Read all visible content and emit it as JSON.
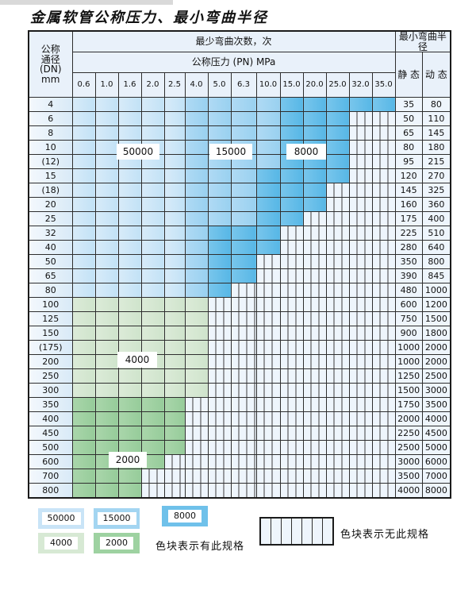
{
  "title": "金属软管公称压力、最小弯曲半径",
  "table": {
    "header": {
      "col_dn": [
        "公称",
        "通径",
        "(DN)",
        "mm"
      ],
      "bend_times": "最少弯曲次数，次",
      "pressure": "公称压力 (PN) MPa",
      "pressures": [
        "0.6",
        "1.0",
        "1.6",
        "2.0",
        "2.5",
        "4.0",
        "5.0",
        "6.3",
        "10.0",
        "15.0",
        "20.0",
        "25.0",
        "32.0",
        "35.0"
      ],
      "radius": "最小弯曲半径",
      "static": "静 态",
      "dynamic": "动 态"
    },
    "cell_legend_note": "cells: b1=50000次, b2=15000次, b3=8000次, g1=4000次, g2=2000次, x=无此规格",
    "rows": [
      {
        "dn": "4",
        "static": "35",
        "dynamic": "80",
        "cells": [
          "b1",
          "b1",
          "b1",
          "b1",
          "b1",
          "b2",
          "b2",
          "b2",
          "b2",
          "b3",
          "b3",
          "b3",
          "b3",
          "b3"
        ]
      },
      {
        "dn": "6",
        "static": "50",
        "dynamic": "110",
        "cells": [
          "b1",
          "b1",
          "b1",
          "b1",
          "b1",
          "b2",
          "b2",
          "b2",
          "b2",
          "b3",
          "b3",
          "b3",
          "x",
          "x"
        ]
      },
      {
        "dn": "8",
        "static": "65",
        "dynamic": "145",
        "cells": [
          "b1",
          "b1",
          "b1",
          "b1",
          "b1",
          "b2",
          "b2",
          "b2",
          "b2",
          "b3",
          "b3",
          "b3",
          "x",
          "x"
        ]
      },
      {
        "dn": "10",
        "static": "80",
        "dynamic": "180",
        "cells": [
          "b1",
          "b1",
          "b1",
          "b1",
          "b1",
          "b2",
          "b2",
          "b2",
          "b2",
          "b3",
          "b3",
          "b3",
          "x",
          "x"
        ]
      },
      {
        "dn": "(12)",
        "static": "95",
        "dynamic": "215",
        "cells": [
          "b1",
          "b1",
          "b1",
          "b1",
          "b1",
          "b2",
          "b2",
          "b2",
          "b2",
          "b3",
          "b3",
          "b3",
          "x",
          "x"
        ]
      },
      {
        "dn": "15",
        "static": "120",
        "dynamic": "270",
        "cells": [
          "b1",
          "b1",
          "b1",
          "b1",
          "b1",
          "b2",
          "b2",
          "b2",
          "b3",
          "b3",
          "b3",
          "b3",
          "x",
          "x"
        ]
      },
      {
        "dn": "(18)",
        "static": "145",
        "dynamic": "325",
        "cells": [
          "b1",
          "b1",
          "b1",
          "b1",
          "b1",
          "b2",
          "b2",
          "b2",
          "b3",
          "b3",
          "b3",
          "x",
          "x",
          "x"
        ]
      },
      {
        "dn": "20",
        "static": "160",
        "dynamic": "360",
        "cells": [
          "b1",
          "b1",
          "b1",
          "b1",
          "b1",
          "b2",
          "b2",
          "b2",
          "b3",
          "b3",
          "b3",
          "x",
          "x",
          "x"
        ]
      },
      {
        "dn": "25",
        "static": "175",
        "dynamic": "400",
        "cells": [
          "b1",
          "b1",
          "b1",
          "b1",
          "b1",
          "b2",
          "b2",
          "b2",
          "b3",
          "b3",
          "x",
          "x",
          "x",
          "x"
        ]
      },
      {
        "dn": "32",
        "static": "225",
        "dynamic": "510",
        "cells": [
          "b1",
          "b1",
          "b1",
          "b1",
          "b1",
          "b2",
          "b3",
          "b3",
          "b3",
          "x",
          "x",
          "x",
          "x",
          "x"
        ]
      },
      {
        "dn": "40",
        "static": "280",
        "dynamic": "640",
        "cells": [
          "b1",
          "b1",
          "b1",
          "b1",
          "b1",
          "b2",
          "b3",
          "b3",
          "b3",
          "x",
          "x",
          "x",
          "x",
          "x"
        ]
      },
      {
        "dn": "50",
        "static": "350",
        "dynamic": "800",
        "cells": [
          "b1",
          "b1",
          "b1",
          "b1",
          "b1",
          "b2",
          "b3",
          "b3",
          "x",
          "x",
          "x",
          "x",
          "x",
          "x"
        ]
      },
      {
        "dn": "65",
        "static": "390",
        "dynamic": "845",
        "cells": [
          "b1",
          "b1",
          "b1",
          "b1",
          "b1",
          "b2",
          "b3",
          "b3",
          "x",
          "x",
          "x",
          "x",
          "x",
          "x"
        ]
      },
      {
        "dn": "80",
        "static": "480",
        "dynamic": "1000",
        "cells": [
          "b1",
          "b1",
          "b1",
          "b1",
          "b1",
          "b2",
          "b3",
          "x",
          "x",
          "x",
          "x",
          "x",
          "x",
          "x"
        ]
      },
      {
        "dn": "100",
        "static": "600",
        "dynamic": "1200",
        "cells": [
          "g1",
          "g1",
          "g1",
          "g1",
          "g1",
          "g1",
          "x",
          "x",
          "x",
          "x",
          "x",
          "x",
          "x",
          "x"
        ]
      },
      {
        "dn": "125",
        "static": "750",
        "dynamic": "1500",
        "cells": [
          "g1",
          "g1",
          "g1",
          "g1",
          "g1",
          "g1",
          "x",
          "x",
          "x",
          "x",
          "x",
          "x",
          "x",
          "x"
        ]
      },
      {
        "dn": "150",
        "static": "900",
        "dynamic": "1800",
        "cells": [
          "g1",
          "g1",
          "g1",
          "g1",
          "g1",
          "g1",
          "x",
          "x",
          "x",
          "x",
          "x",
          "x",
          "x",
          "x"
        ]
      },
      {
        "dn": "(175)",
        "static": "1000",
        "dynamic": "2000",
        "cells": [
          "g1",
          "g1",
          "g1",
          "g1",
          "g1",
          "g1",
          "x",
          "x",
          "x",
          "x",
          "x",
          "x",
          "x",
          "x"
        ]
      },
      {
        "dn": "200",
        "static": "1000",
        "dynamic": "2000",
        "cells": [
          "g1",
          "g1",
          "g1",
          "g1",
          "g1",
          "g1",
          "x",
          "x",
          "x",
          "x",
          "x",
          "x",
          "x",
          "x"
        ]
      },
      {
        "dn": "250",
        "static": "1250",
        "dynamic": "2500",
        "cells": [
          "g1",
          "g1",
          "g1",
          "g1",
          "g1",
          "g1",
          "x",
          "x",
          "x",
          "x",
          "x",
          "x",
          "x",
          "x"
        ]
      },
      {
        "dn": "300",
        "static": "1500",
        "dynamic": "3000",
        "cells": [
          "g1",
          "g1",
          "g1",
          "g1",
          "g1",
          "g1",
          "x",
          "x",
          "x",
          "x",
          "x",
          "x",
          "x",
          "x"
        ]
      },
      {
        "dn": "350",
        "static": "1750",
        "dynamic": "3500",
        "cells": [
          "g2",
          "g2",
          "g2",
          "g2",
          "g2",
          "x",
          "x",
          "x",
          "x",
          "x",
          "x",
          "x",
          "x",
          "x"
        ]
      },
      {
        "dn": "400",
        "static": "2000",
        "dynamic": "4000",
        "cells": [
          "g2",
          "g2",
          "g2",
          "g2",
          "g2",
          "x",
          "x",
          "x",
          "x",
          "x",
          "x",
          "x",
          "x",
          "x"
        ]
      },
      {
        "dn": "450",
        "static": "2250",
        "dynamic": "4500",
        "cells": [
          "g2",
          "g2",
          "g2",
          "g2",
          "g2",
          "x",
          "x",
          "x",
          "x",
          "x",
          "x",
          "x",
          "x",
          "x"
        ]
      },
      {
        "dn": "500",
        "static": "2500",
        "dynamic": "5000",
        "cells": [
          "g2",
          "g2",
          "g2",
          "g2",
          "g2",
          "x",
          "x",
          "x",
          "x",
          "x",
          "x",
          "x",
          "x",
          "x"
        ]
      },
      {
        "dn": "600",
        "static": "3000",
        "dynamic": "6000",
        "cells": [
          "g2",
          "g2",
          "g2",
          "g2",
          "x",
          "x",
          "x",
          "x",
          "x",
          "x",
          "x",
          "x",
          "x",
          "x"
        ]
      },
      {
        "dn": "700",
        "static": "3500",
        "dynamic": "7000",
        "cells": [
          "g2",
          "g2",
          "g2",
          "x",
          "x",
          "x",
          "x",
          "x",
          "x",
          "x",
          "x",
          "x",
          "x",
          "x"
        ]
      },
      {
        "dn": "800",
        "static": "4000",
        "dynamic": "8000",
        "cells": [
          "g2",
          "g2",
          "g2",
          "x",
          "x",
          "x",
          "x",
          "x",
          "x",
          "x",
          "x",
          "x",
          "x",
          "x"
        ]
      }
    ]
  },
  "grid_labels": [
    {
      "text": "50000"
    },
    {
      "text": "15000"
    },
    {
      "text": "8000"
    },
    {
      "text": "4000"
    },
    {
      "text": "2000"
    }
  ],
  "legend": {
    "items": [
      {
        "label": "50000",
        "color": "#c9e4f7"
      },
      {
        "label": "15000",
        "color": "#a3d5f1"
      },
      {
        "label": "8000",
        "color": "#6fc1ea"
      },
      {
        "label": "4000",
        "color": "#d7e9d4"
      },
      {
        "label": "2000",
        "color": "#9ed2a1"
      }
    ],
    "has_spec_text": "色块表示有此规格",
    "no_spec_text": "色块表示无此规格"
  },
  "colors": {
    "band_50000": "#c9e4f7",
    "band_15000": "#a3d5f1",
    "band_8000": "#6fc1ea",
    "band_4000": "#d7e9d4",
    "band_2000": "#9ed2a1",
    "header_bg": "#e9f1fa",
    "stripe_bg": "#eef5fc",
    "border": "#2e2e2e"
  }
}
